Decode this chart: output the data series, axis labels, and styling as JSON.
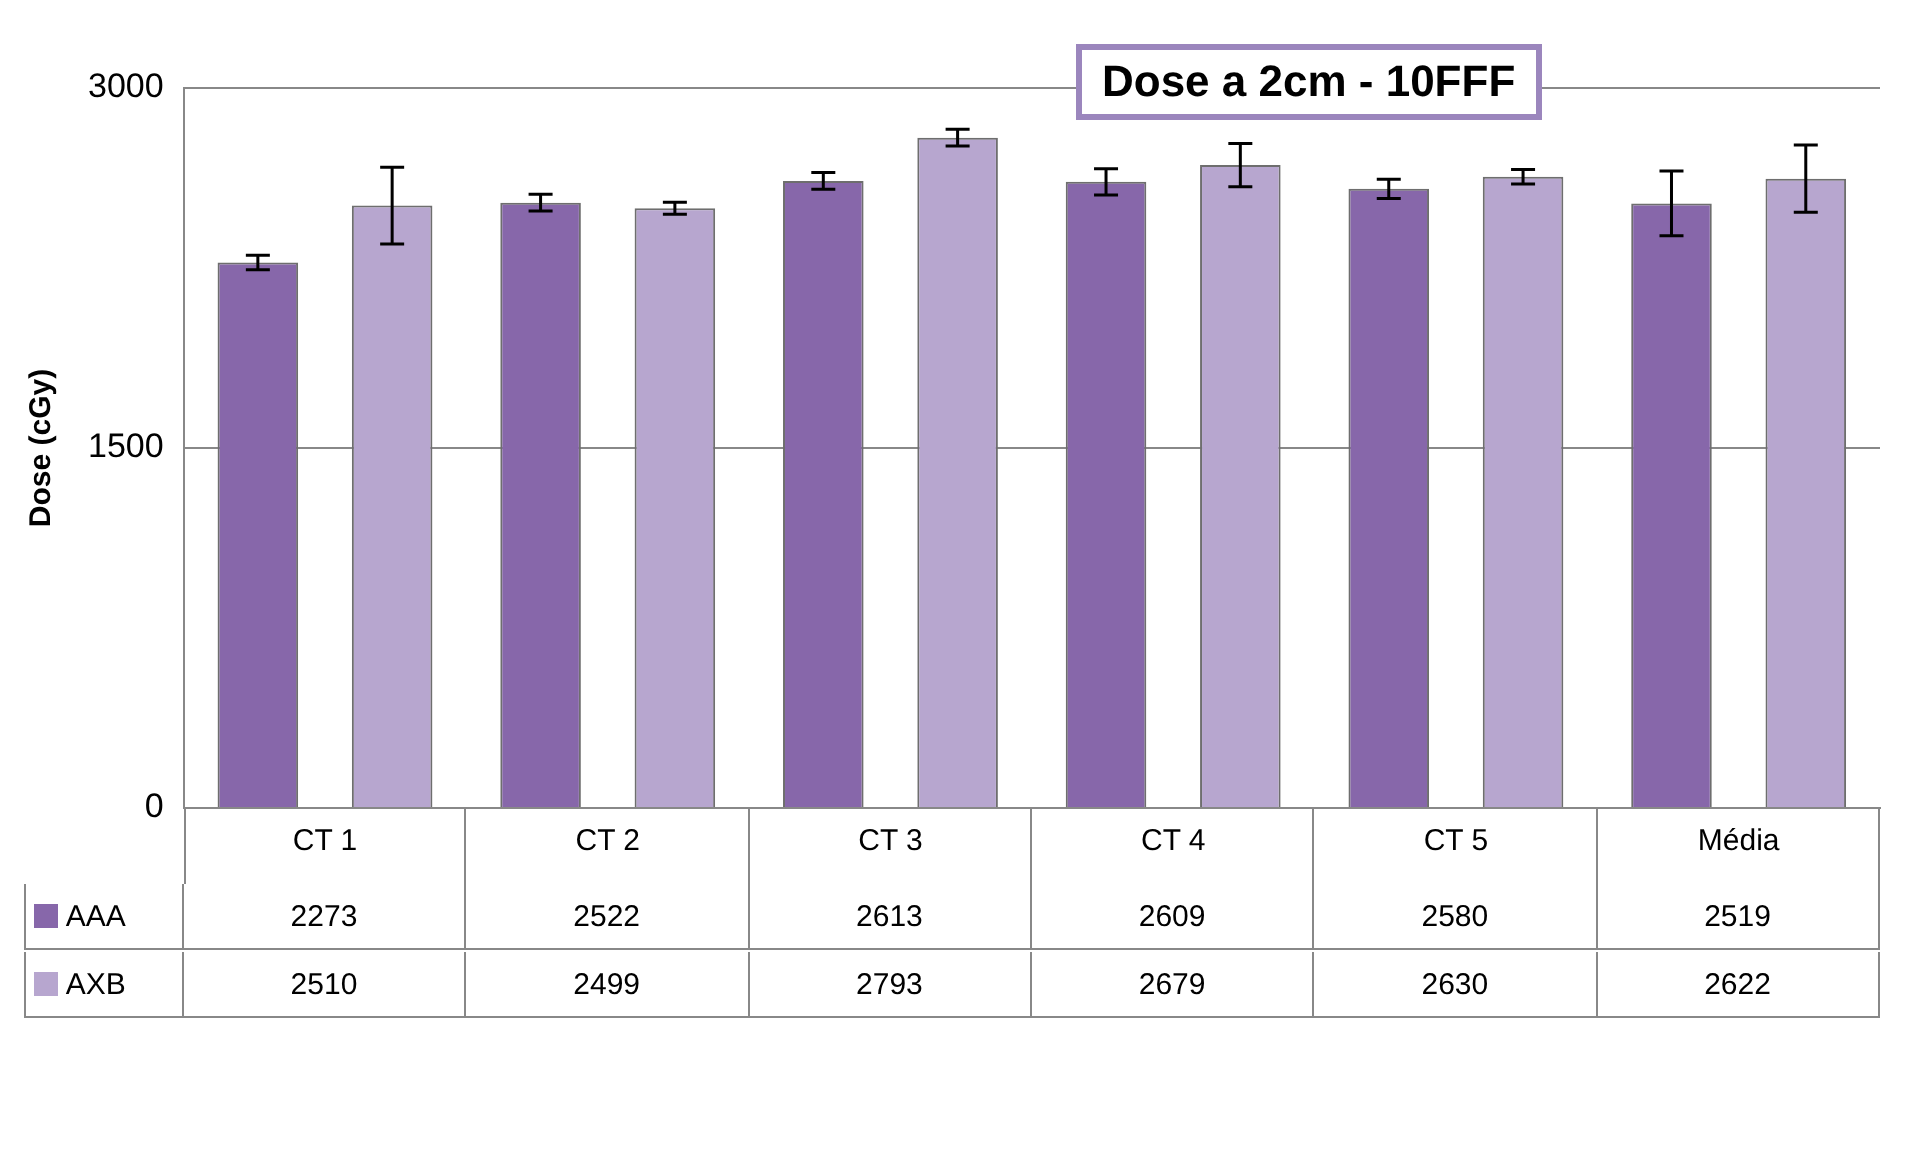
{
  "chart_data": {
    "type": "bar",
    "title": "Dose a 2cm - 10FFF",
    "ylabel": "Dose (cGy)",
    "categories": [
      "CT 1",
      "CT 2",
      "CT 3",
      "CT 4",
      "CT 5",
      "Média"
    ],
    "series": [
      {
        "name": "AAA",
        "color": "#8767aa",
        "values": [
          2273,
          2522,
          2613,
          2609,
          2580,
          2519
        ],
        "errors": [
          30,
          35,
          35,
          55,
          40,
          135
        ]
      },
      {
        "name": "AXB",
        "color": "#b7a6cf",
        "values": [
          2510,
          2499,
          2793,
          2679,
          2630,
          2622
        ],
        "errors": [
          160,
          25,
          35,
          90,
          30,
          140
        ]
      }
    ],
    "ylim": [
      0,
      3000
    ],
    "yticks": [
      0,
      1500,
      3000
    ],
    "grid": "y",
    "legend": "bottom",
    "data_labels": true
  }
}
